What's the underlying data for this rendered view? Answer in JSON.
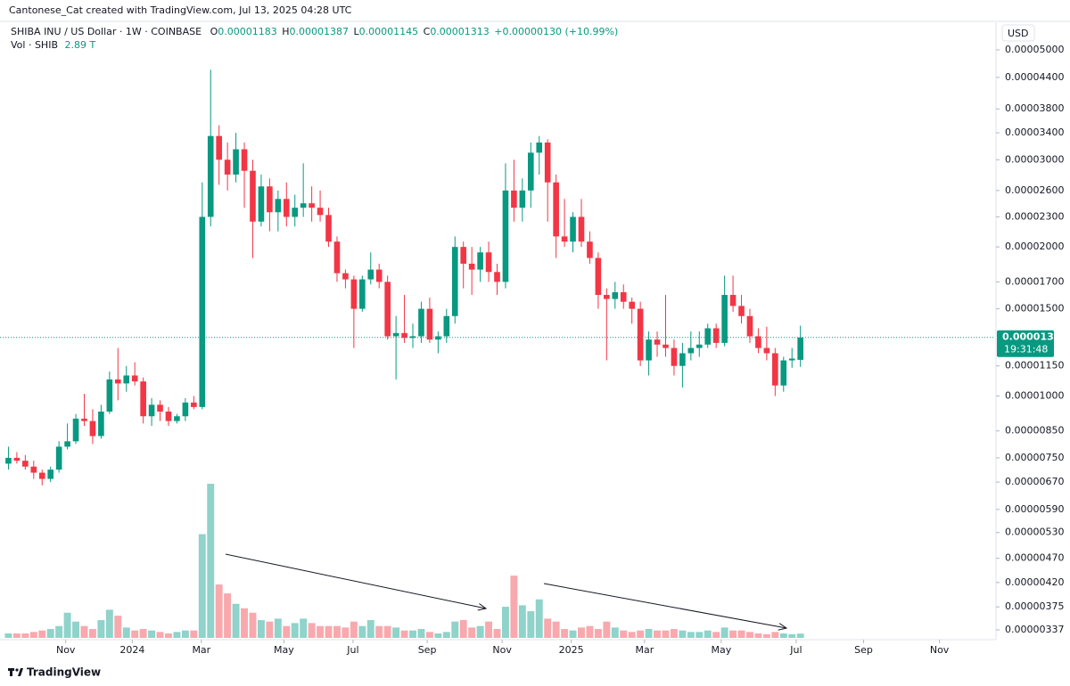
{
  "chart_data": {
    "type": "candlestick",
    "attribution": "Cantonese_Cat created with TradingView.com, Jul 13, 2025 04:28 UTC",
    "title": "SHIBA INU / US Dollar · 1W · COINBASE",
    "ohlc_labels": [
      "O",
      "H",
      "L",
      "C"
    ],
    "change_label": "+0.00000130 (+10.99%)",
    "volume_title": "Vol · SHIB",
    "volume_label": "2.89 T",
    "currency": "USD",
    "countdown": "19:31:48",
    "brand": "TradingView",
    "log_scale": true,
    "up_color": "#089981",
    "down_color": "#f23645",
    "volume_up_color": "#8fd3ca",
    "volume_down_color": "#f8a9ae",
    "ylim": [
      3.37e-06,
      5e-05
    ],
    "yticks": [
      {
        "value": 5e-05,
        "label": "0.00005000"
      },
      {
        "value": 4.4e-05,
        "label": "0.00004400"
      },
      {
        "value": 3.8e-05,
        "label": "0.00003800"
      },
      {
        "value": 3.4e-05,
        "label": "0.00003400"
      },
      {
        "value": 3e-05,
        "label": "0.00003000"
      },
      {
        "value": 2.6e-05,
        "label": "0.00002600"
      },
      {
        "value": 2.3e-05,
        "label": "0.00002300"
      },
      {
        "value": 2e-05,
        "label": "0.00002000"
      },
      {
        "value": 1.7e-05,
        "label": "0.00001700"
      },
      {
        "value": 1.5e-05,
        "label": "0.00001500"
      },
      {
        "value": 1.15e-05,
        "label": "0.00001150"
      },
      {
        "value": 1e-05,
        "label": "0.00001000"
      },
      {
        "value": 8.5e-06,
        "label": "0.00000850"
      },
      {
        "value": 7.5e-06,
        "label": "0.00000750"
      },
      {
        "value": 6.7e-06,
        "label": "0.00000670"
      },
      {
        "value": 5.9e-06,
        "label": "0.00000590"
      },
      {
        "value": 5.3e-06,
        "label": "0.00000530"
      },
      {
        "value": 4.7e-06,
        "label": "0.00000470"
      },
      {
        "value": 4.2e-06,
        "label": "0.00000420"
      },
      {
        "value": 3.75e-06,
        "label": "0.00000375"
      },
      {
        "value": 3.37e-06,
        "label": "0.00000337"
      }
    ],
    "xlim": [
      -1,
      117
    ],
    "xticks": [
      {
        "value": 6.8,
        "label": "Nov"
      },
      {
        "value": 14.7,
        "label": "2024"
      },
      {
        "value": 22.9,
        "label": "Mar"
      },
      {
        "value": 32.7,
        "label": "May"
      },
      {
        "value": 40.9,
        "label": "Jul"
      },
      {
        "value": 49.7,
        "label": "Sep"
      },
      {
        "value": 58.6,
        "label": "Nov"
      },
      {
        "value": 66.8,
        "label": "2025"
      },
      {
        "value": 75.5,
        "label": "Mar"
      },
      {
        "value": 84.6,
        "label": "May"
      },
      {
        "value": 93.5,
        "label": "Jul"
      },
      {
        "value": 101.5,
        "label": "Sep"
      },
      {
        "value": 110.5,
        "label": "Nov"
      }
    ],
    "open": [
      7.3e-06,
      7.5e-06,
      7.4e-06,
      7.2e-06,
      7e-06,
      6.8e-06,
      7.1e-06,
      7.9e-06,
      8.1e-06,
      9e-06,
      8.9e-06,
      8.3e-06,
      9.3e-06,
      1.08e-05,
      1.06e-05,
      1.1e-05,
      1.07e-05,
      9.1e-06,
      9.6e-06,
      9.3e-06,
      8.9e-06,
      9.1e-06,
      9.7e-06,
      9.5e-06,
      2.3e-05,
      3.35e-05,
      3e-05,
      2.8e-05,
      3.15e-05,
      2.85e-05,
      2.25e-05,
      2.65e-05,
      2.35e-05,
      2.5e-05,
      2.3e-05,
      2.4e-05,
      2.45e-05,
      2.4e-05,
      2.32e-05,
      2.05e-05,
      1.77e-05,
      1.72e-05,
      1.5e-05,
      1.72e-05,
      1.8e-05,
      1.7e-05,
      1.32e-05,
      1.34e-05,
      1.31e-05,
      1.32e-05,
      1.5e-05,
      1.3e-05,
      1.32e-05,
      1.45e-05,
      2e-05,
      1.85e-05,
      1.8e-05,
      1.95e-05,
      1.78e-05,
      1.7e-05,
      2.6e-05,
      2.4e-05,
      2.6e-05,
      3.1e-05,
      3.25e-05,
      2.7e-05,
      2.1e-05,
      2.05e-05,
      2.3e-05,
      2.05e-05,
      1.9e-05,
      1.6e-05,
      1.57e-05,
      1.62e-05,
      1.55e-05,
      1.5e-05,
      1.18e-05,
      1.3e-05,
      1.27e-05,
      1.25e-05,
      1.15e-05,
      1.22e-05,
      1.25e-05,
      1.27e-05,
      1.37e-05,
      1.28e-05,
      1.6e-05,
      1.52e-05,
      1.45e-05,
      1.32e-05,
      1.25e-05,
      1.22e-05,
      1.05e-05,
      1.18e-05,
      1.183e-05
    ],
    "high": [
      7.9e-06,
      7.7e-06,
      7.6e-06,
      7.4e-06,
      7.1e-06,
      7.2e-06,
      8.1e-06,
      8.8e-06,
      9.2e-06,
      1.01e-05,
      9.4e-06,
      9.6e-06,
      1.12e-05,
      1.25e-05,
      1.15e-05,
      1.17e-05,
      1.09e-05,
      9.9e-06,
      9.8e-06,
      9.5e-06,
      9.2e-06,
      9.9e-06,
      1e-05,
      2.7e-05,
      4.56e-05,
      3.52e-05,
      3.25e-05,
      3.4e-05,
      3.25e-05,
      3e-05,
      2.8e-05,
      2.75e-05,
      2.6e-05,
      2.7e-05,
      2.55e-05,
      2.95e-05,
      2.65e-05,
      2.6e-05,
      2.4e-05,
      2.1e-05,
      1.8e-05,
      1.75e-05,
      1.75e-05,
      1.95e-05,
      1.85e-05,
      1.75e-05,
      1.45e-05,
      1.6e-05,
      1.4e-05,
      1.55e-05,
      1.58e-05,
      1.35e-05,
      1.5e-05,
      2.1e-05,
      2.05e-05,
      2e-05,
      2e-05,
      2.05e-05,
      1.85e-05,
      2.95e-05,
      3e-05,
      2.75e-05,
      3.25e-05,
      3.35e-05,
      3.3e-05,
      2.8e-05,
      2.5e-05,
      2.35e-05,
      2.5e-05,
      2.15e-05,
      1.95e-05,
      1.65e-05,
      1.7e-05,
      1.68e-05,
      1.58e-05,
      1.55e-05,
      1.35e-05,
      1.35e-05,
      1.6e-05,
      1.3e-05,
      1.28e-05,
      1.35e-05,
      1.35e-05,
      1.4e-05,
      1.4e-05,
      1.75e-05,
      1.75e-05,
      1.6e-05,
      1.5e-05,
      1.37e-05,
      1.38e-05,
      1.25e-05,
      1.2e-05,
      1.25e-05,
      1.387e-05
    ],
    "low": [
      7.1e-06,
      7.3e-06,
      7.1e-06,
      6.8e-06,
      6.6e-06,
      6.7e-06,
      7e-06,
      7.8e-06,
      8e-06,
      8.7e-06,
      8e-06,
      8.2e-06,
      9.2e-06,
      9.8e-06,
      1.02e-05,
      1.05e-05,
      8.8e-06,
      8.7e-06,
      8.9e-06,
      8.7e-06,
      8.8e-06,
      8.9e-06,
      9.4e-06,
      9.4e-06,
      2.2e-05,
      2.67e-05,
      2.6e-05,
      2.7e-05,
      2.4e-05,
      1.9e-05,
      2.2e-05,
      2.15e-05,
      2.15e-05,
      2.2e-05,
      2.2e-05,
      2.3e-05,
      2.25e-05,
      2.25e-05,
      2e-05,
      1.7e-05,
      1.65e-05,
      1.25e-05,
      1.48e-05,
      1.68e-05,
      1.65e-05,
      1.3e-05,
      1.08e-05,
      1.28e-05,
      1.25e-05,
      1.28e-05,
      1.28e-05,
      1.22e-05,
      1.28e-05,
      1.4e-05,
      1.65e-05,
      1.6e-05,
      1.7e-05,
      1.7e-05,
      1.6e-05,
      1.65e-05,
      2.25e-05,
      2.25e-05,
      2.4e-05,
      2.8e-05,
      2.25e-05,
      1.9e-05,
      2e-05,
      1.95e-05,
      2e-05,
      1.85e-05,
      1.5e-05,
      1.18e-05,
      1.5e-05,
      1.5e-05,
      1.4e-05,
      1.15e-05,
      1.1e-05,
      1.2e-05,
      1.2e-05,
      1.1e-05,
      1.04e-05,
      1.18e-05,
      1.2e-05,
      1.25e-05,
      1.25e-05,
      1.26e-05,
      1.48e-05,
      1.4e-05,
      1.28e-05,
      1.22e-05,
      1.18e-05,
      1e-05,
      1.02e-05,
      1.14e-05,
      1.145e-05
    ],
    "close": [
      7.5e-06,
      7.4e-06,
      7.2e-06,
      7e-06,
      6.8e-06,
      7.1e-06,
      7.9e-06,
      8.1e-06,
      9e-06,
      8.9e-06,
      8.3e-06,
      9.3e-06,
      1.08e-05,
      1.06e-05,
      1.1e-05,
      1.07e-05,
      9.1e-06,
      9.6e-06,
      9.3e-06,
      8.9e-06,
      9.1e-06,
      9.7e-06,
      9.5e-06,
      2.3e-05,
      3.35e-05,
      3e-05,
      2.8e-05,
      3.15e-05,
      2.85e-05,
      2.25e-05,
      2.65e-05,
      2.35e-05,
      2.5e-05,
      2.3e-05,
      2.4e-05,
      2.45e-05,
      2.4e-05,
      2.32e-05,
      2.05e-05,
      1.77e-05,
      1.72e-05,
      1.5e-05,
      1.72e-05,
      1.8e-05,
      1.7e-05,
      1.32e-05,
      1.34e-05,
      1.31e-05,
      1.32e-05,
      1.5e-05,
      1.3e-05,
      1.32e-05,
      1.45e-05,
      2e-05,
      1.85e-05,
      1.8e-05,
      1.95e-05,
      1.78e-05,
      1.7e-05,
      2.6e-05,
      2.4e-05,
      2.6e-05,
      3.1e-05,
      3.25e-05,
      2.7e-05,
      2.1e-05,
      2.05e-05,
      2.3e-05,
      2.05e-05,
      1.9e-05,
      1.6e-05,
      1.57e-05,
      1.62e-05,
      1.55e-05,
      1.5e-05,
      1.18e-05,
      1.3e-05,
      1.27e-05,
      1.25e-05,
      1.15e-05,
      1.22e-05,
      1.25e-05,
      1.27e-05,
      1.37e-05,
      1.28e-05,
      1.6e-05,
      1.52e-05,
      1.45e-05,
      1.32e-05,
      1.25e-05,
      1.22e-05,
      1.05e-05,
      1.18e-05,
      1.19e-05,
      1.313e-05
    ],
    "volume": [
      3,
      3,
      3,
      4,
      5,
      6,
      8,
      17,
      11,
      8,
      6,
      12,
      19,
      15,
      7,
      5,
      6,
      5,
      4,
      3,
      4,
      5,
      5,
      70,
      104,
      36,
      30,
      23,
      20,
      17,
      12,
      11,
      13,
      8,
      10,
      13,
      10,
      8,
      8,
      8,
      7,
      11,
      8,
      12,
      8,
      8,
      7,
      5,
      5,
      6,
      4,
      3,
      4,
      11,
      12,
      7,
      8,
      11,
      6,
      21,
      42,
      22,
      18,
      26,
      13,
      11,
      6,
      5,
      7,
      8,
      6,
      11,
      7,
      5,
      4,
      5,
      6,
      5,
      5,
      6,
      5,
      4,
      4,
      5,
      4,
      7,
      5,
      5,
      4,
      3,
      2.5,
      4,
      3,
      2.5,
      2.89
    ]
  }
}
